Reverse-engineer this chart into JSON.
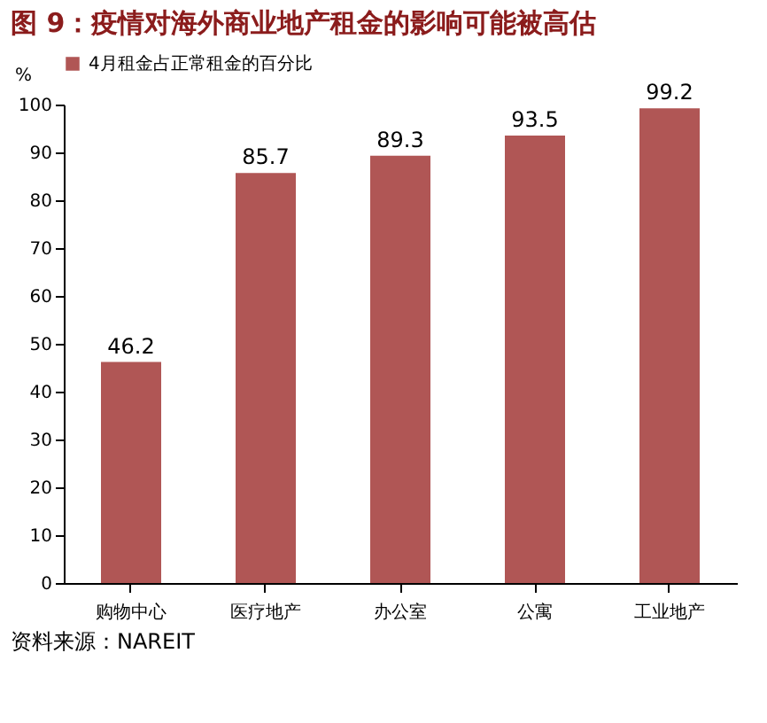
{
  "chart_data": {
    "type": "bar",
    "title": "图 9：疫情对海外商业地产租金的影响可能被高估",
    "categories": [
      "购物中心",
      "医疗地产",
      "办公室",
      "公寓",
      "工业地产"
    ],
    "series": [
      {
        "name": "4月租金占正常租金的百分比",
        "color": "#b05655",
        "values": [
          46.2,
          85.7,
          89.3,
          93.5,
          99.2
        ]
      }
    ],
    "ylabel": "%",
    "ylim": [
      0,
      100
    ],
    "yticks": [
      0,
      10,
      20,
      30,
      40,
      50,
      60,
      70,
      80,
      90,
      100
    ],
    "data_labels": true,
    "grid": false,
    "legend": "top",
    "annotations": [
      "资料来源：NAREIT"
    ]
  }
}
